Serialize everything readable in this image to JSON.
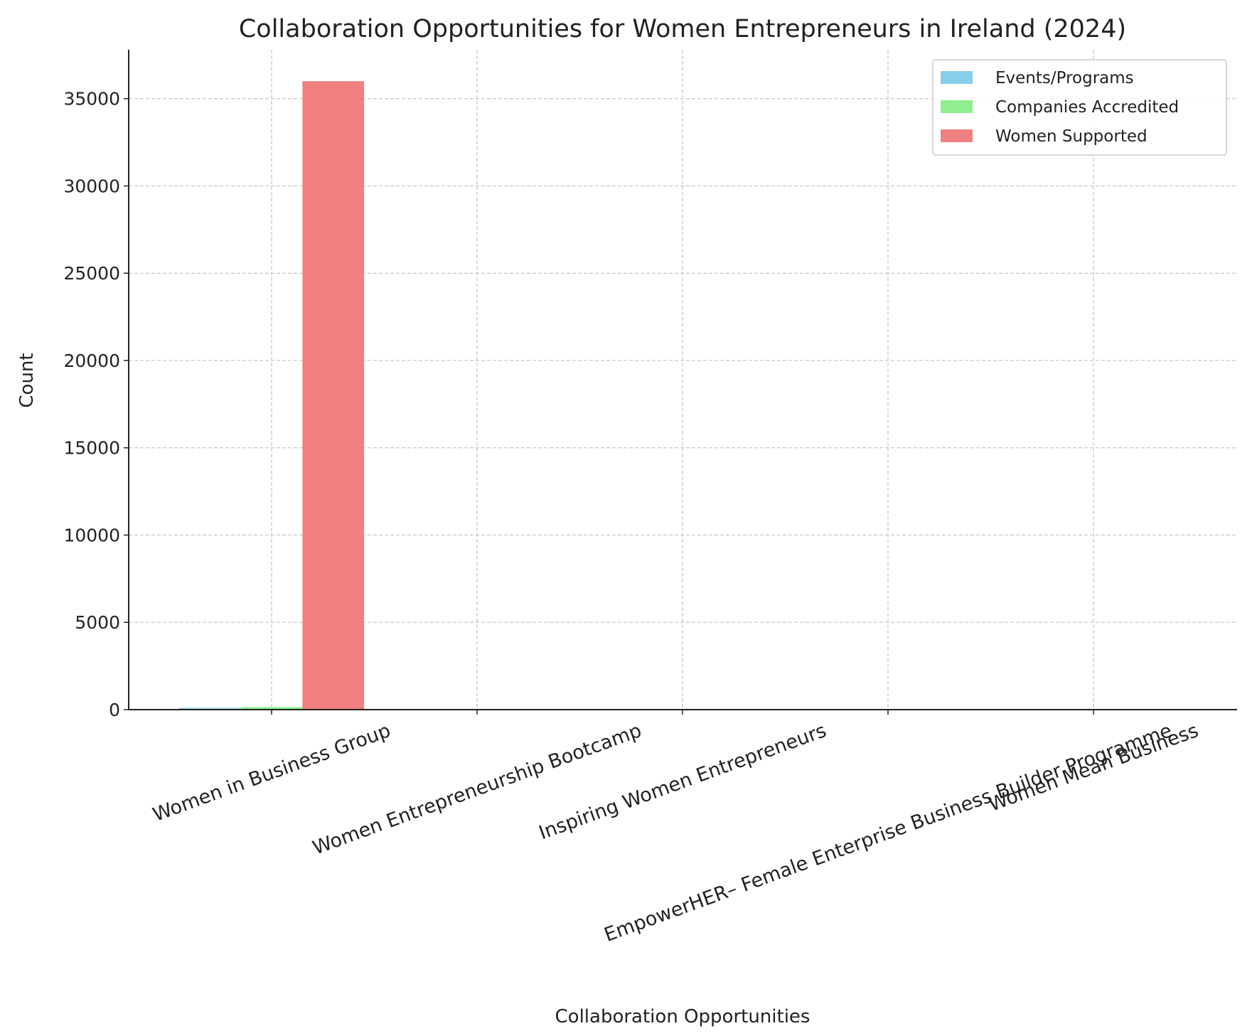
{
  "chart_data": {
    "type": "bar",
    "title": "Collaboration Opportunities for Women Entrepreneurs in Ireland (2024)",
    "x_label": "Collaboration Opportunities",
    "y_label": "Count",
    "categories": [
      "Women in Business Group",
      "Women Entrepreneurship Bootcamp",
      "Inspiring Women Entrepreneurs",
      "EmpowerHER– Female Enterprise Business Builder Programme",
      "Women Mean Business"
    ],
    "series": [
      {
        "name": "Events/Programs",
        "color": "#87ceeb",
        "values": [
          100,
          0,
          0,
          0,
          0
        ]
      },
      {
        "name": "Companies Accredited",
        "color": "#90ee90",
        "values": [
          150,
          0,
          0,
          0,
          0
        ]
      },
      {
        "name": "Women Supported",
        "color": "#f08080",
        "values": [
          36000,
          0,
          0,
          0,
          0
        ]
      }
    ],
    "ylim": [
      0,
      37800
    ],
    "yticks": [
      0,
      5000,
      10000,
      15000,
      20000,
      25000,
      30000,
      35000
    ],
    "grid": true,
    "legend": "upper right"
  }
}
